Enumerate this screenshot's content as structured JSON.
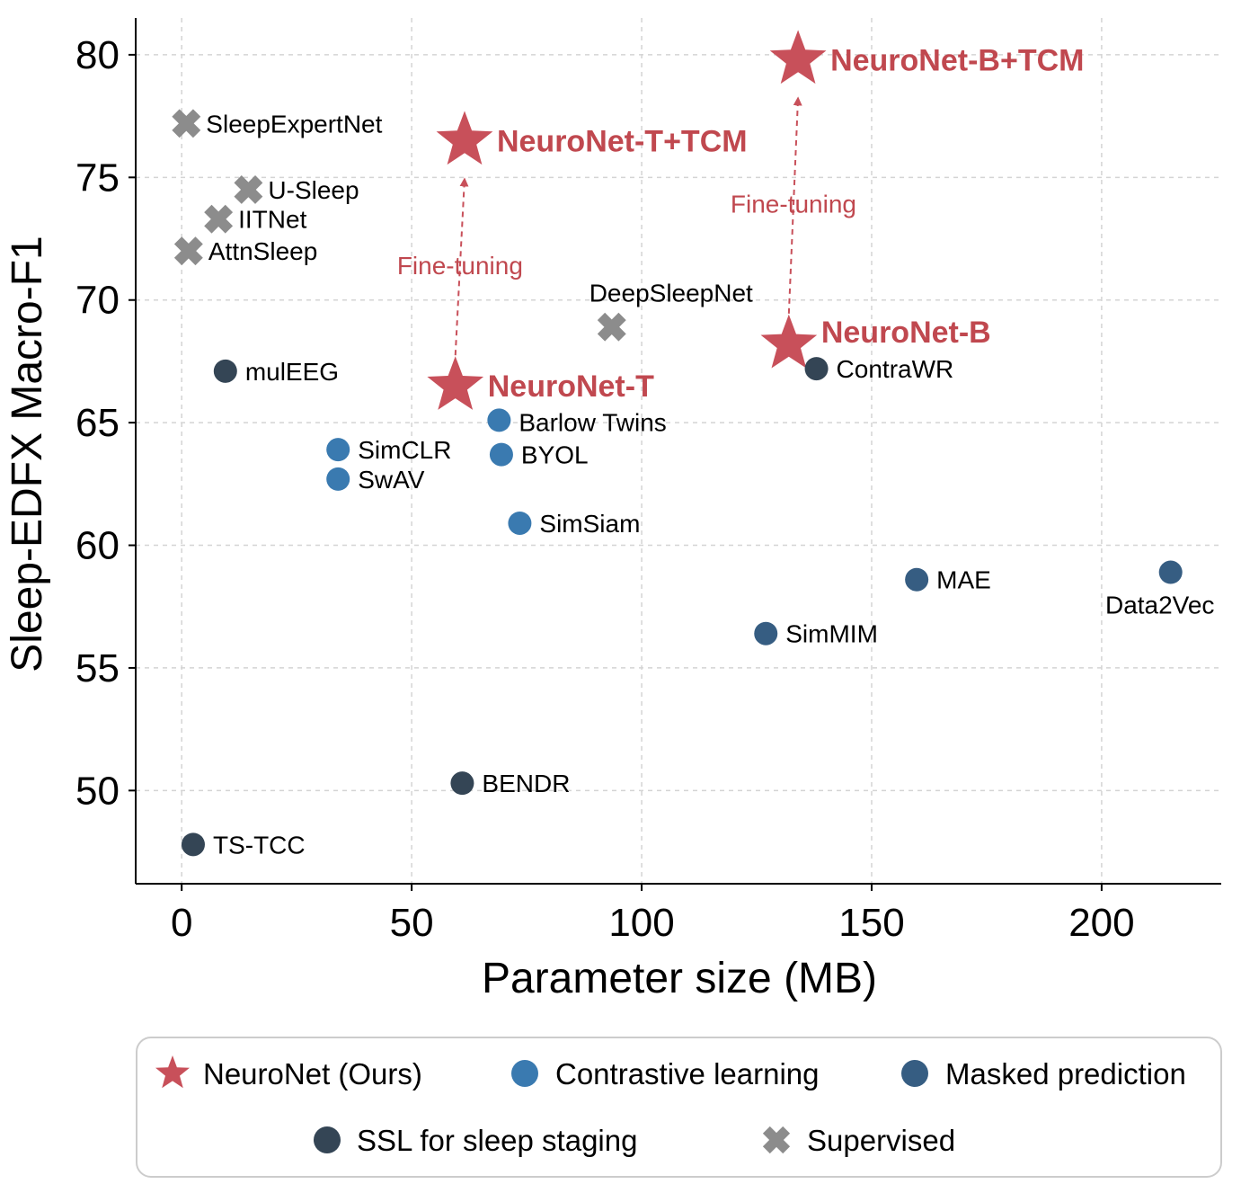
{
  "chart_data": {
    "type": "scatter",
    "xlabel": "Parameter size (MB)",
    "ylabel": "Sleep-EDFX Macro-F1",
    "xlim": [
      -10,
      226
    ],
    "ylim": [
      46.2,
      81.5
    ],
    "xticks": [
      0,
      50,
      100,
      150,
      200
    ],
    "yticks": [
      50,
      55,
      60,
      65,
      70,
      75,
      80
    ],
    "grid": true,
    "legend_placement": "below",
    "categories": [
      {
        "key": "ours",
        "label": "NeuroNet (Ours)",
        "color": "#c8505a",
        "marker": "star"
      },
      {
        "key": "contrastive",
        "label": "Contrastive learning",
        "color": "#3a7ab0",
        "marker": "circle"
      },
      {
        "key": "masked",
        "label": "Masked prediction",
        "color": "#365d82",
        "marker": "circle"
      },
      {
        "key": "ssl",
        "label": "SSL for sleep staging",
        "color": "#344555",
        "marker": "circle"
      },
      {
        "key": "supervised",
        "label": "Supervised",
        "color": "#8c8c8c",
        "marker": "x"
      }
    ],
    "points": [
      {
        "name": "NeuroNet-B+TCM",
        "x": 134,
        "y": 79.8,
        "cat": "ours",
        "pos": "right"
      },
      {
        "name": "NeuroNet-T+TCM",
        "x": 61.5,
        "y": 76.5,
        "cat": "ours",
        "pos": "right"
      },
      {
        "name": "NeuroNet-B",
        "x": 132,
        "y": 68.2,
        "cat": "ours",
        "pos": "right-up"
      },
      {
        "name": "NeuroNet-T",
        "x": 59.5,
        "y": 66.5,
        "cat": "ours",
        "pos": "right"
      },
      {
        "name": "Barlow Twins",
        "x": 69,
        "y": 65.1,
        "cat": "contrastive",
        "pos": "right-down"
      },
      {
        "name": "SimCLR",
        "x": 34,
        "y": 63.9,
        "cat": "contrastive",
        "pos": "right"
      },
      {
        "name": "BYOL",
        "x": 69.5,
        "y": 63.7,
        "cat": "contrastive",
        "pos": "right"
      },
      {
        "name": "SwAV",
        "x": 34,
        "y": 62.7,
        "cat": "contrastive",
        "pos": "right"
      },
      {
        "name": "SimSiam",
        "x": 73.5,
        "y": 60.9,
        "cat": "contrastive",
        "pos": "right"
      },
      {
        "name": "MAE",
        "x": 159.8,
        "y": 58.6,
        "cat": "masked",
        "pos": "right"
      },
      {
        "name": "Data2Vec",
        "x": 215,
        "y": 58.9,
        "cat": "masked",
        "pos": "below"
      },
      {
        "name": "SimMIM",
        "x": 127,
        "y": 56.4,
        "cat": "masked",
        "pos": "right"
      },
      {
        "name": "mulEEG",
        "x": 9.5,
        "y": 67.1,
        "cat": "ssl",
        "pos": "right"
      },
      {
        "name": "ContraWR",
        "x": 138,
        "y": 67.2,
        "cat": "ssl",
        "pos": "right"
      },
      {
        "name": "BENDR",
        "x": 61,
        "y": 50.3,
        "cat": "ssl",
        "pos": "right"
      },
      {
        "name": "TS-TCC",
        "x": 2.5,
        "y": 47.8,
        "cat": "ssl",
        "pos": "right"
      },
      {
        "name": "SleepExpertNet",
        "x": 1,
        "y": 77.2,
        "cat": "supervised",
        "pos": "right"
      },
      {
        "name": "U-Sleep",
        "x": 14.5,
        "y": 74.5,
        "cat": "supervised",
        "pos": "right"
      },
      {
        "name": "IITNet",
        "x": 8,
        "y": 73.3,
        "cat": "supervised",
        "pos": "right"
      },
      {
        "name": "AttnSleep",
        "x": 1.5,
        "y": 72,
        "cat": "supervised",
        "pos": "right"
      },
      {
        "name": "DeepSleepNet",
        "x": 93.5,
        "y": 68.9,
        "cat": "supervised",
        "pos": "above"
      }
    ],
    "annotations": [
      {
        "text": "Fine-tuning",
        "from": [
          59.5,
          66.5
        ],
        "to": [
          61.5,
          76.5
        ]
      },
      {
        "text": "Fine-tuning",
        "from": [
          132,
          68.2
        ],
        "to": [
          134,
          79.8
        ]
      }
    ]
  }
}
